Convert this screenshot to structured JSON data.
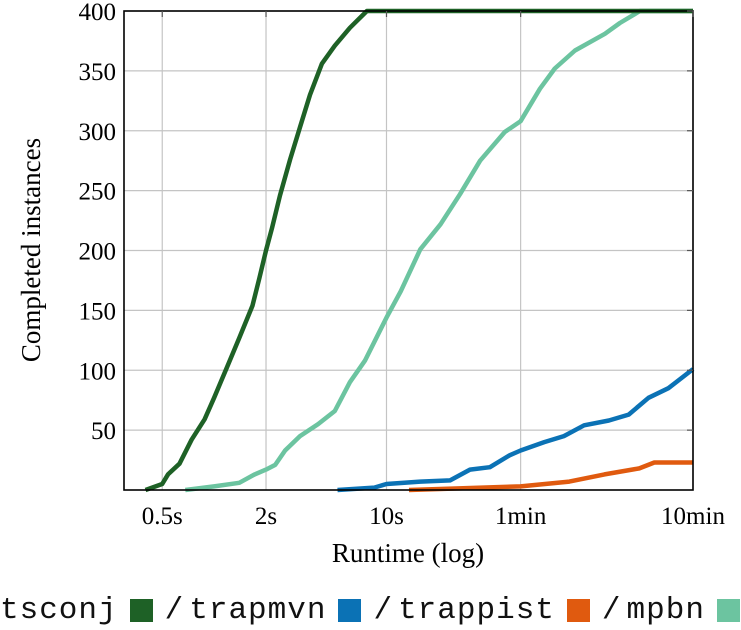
{
  "chart_data": {
    "type": "line",
    "title": "",
    "xlabel": "Runtime (log)",
    "ylabel": "Completed instances",
    "xscale": "log",
    "xlim_seconds": [
      0.3,
      600
    ],
    "ylim": [
      0,
      400
    ],
    "x_ticks": [
      {
        "label": "0.5s",
        "seconds": 0.5
      },
      {
        "label": "2s",
        "seconds": 2
      },
      {
        "label": "10s",
        "seconds": 10
      },
      {
        "label": "1min",
        "seconds": 60
      },
      {
        "label": "10min",
        "seconds": 600
      }
    ],
    "y_ticks": [
      50,
      100,
      150,
      200,
      250,
      300,
      350,
      400
    ],
    "grid": true,
    "legend_position": "bottom",
    "series": [
      {
        "name": "tsconj",
        "color": "#1e6126",
        "points": [
          [
            0.4,
            0
          ],
          [
            0.5,
            5
          ],
          [
            0.54,
            13
          ],
          [
            0.63,
            22
          ],
          [
            0.74,
            42
          ],
          [
            0.88,
            59
          ],
          [
            1.0,
            77
          ],
          [
            1.19,
            103
          ],
          [
            1.4,
            127
          ],
          [
            1.67,
            154
          ],
          [
            1.83,
            177
          ],
          [
            2.0,
            200
          ],
          [
            2.17,
            219
          ],
          [
            2.41,
            246
          ],
          [
            2.76,
            276
          ],
          [
            3.15,
            303
          ],
          [
            3.6,
            330
          ],
          [
            4.22,
            356
          ],
          [
            5.01,
            371
          ],
          [
            6.13,
            386
          ],
          [
            7.7,
            400
          ],
          [
            600,
            400
          ]
        ]
      },
      {
        "name": "trapmvn",
        "color": "#0b72b5",
        "points": [
          [
            5.2,
            0
          ],
          [
            8.5,
            2
          ],
          [
            10.0,
            5
          ],
          [
            15.7,
            7
          ],
          [
            23.4,
            8
          ],
          [
            30.5,
            17
          ],
          [
            39.8,
            19
          ],
          [
            51.8,
            29
          ],
          [
            60.0,
            33
          ],
          [
            82.3,
            40
          ],
          [
            107,
            45
          ],
          [
            140,
            54
          ],
          [
            195,
            58
          ],
          [
            254,
            63
          ],
          [
            331,
            77
          ],
          [
            432,
            85
          ],
          [
            600,
            101
          ]
        ]
      },
      {
        "name": "trappist",
        "color": "#e05a0f",
        "points": [
          [
            13.5,
            0
          ],
          [
            60.0,
            3
          ],
          [
            115,
            7
          ],
          [
            184,
            13
          ],
          [
            293,
            18
          ],
          [
            358,
            23
          ],
          [
            600,
            23
          ]
        ]
      },
      {
        "name": "mpbn",
        "color": "#6cc4a0",
        "points": [
          [
            0.68,
            0
          ],
          [
            1.0,
            3
          ],
          [
            1.4,
            6
          ],
          [
            1.72,
            13
          ],
          [
            2.0,
            17
          ],
          [
            2.26,
            21
          ],
          [
            2.58,
            33
          ],
          [
            3.15,
            45
          ],
          [
            4.01,
            55
          ],
          [
            5.01,
            66
          ],
          [
            6.13,
            90
          ],
          [
            7.49,
            108
          ],
          [
            10.0,
            144
          ],
          [
            12.1,
            166
          ],
          [
            15.7,
            201
          ],
          [
            20.6,
            222
          ],
          [
            26.7,
            247
          ],
          [
            34.9,
            275
          ],
          [
            48.6,
            299
          ],
          [
            60.0,
            308
          ],
          [
            77.6,
            335
          ],
          [
            94.7,
            352
          ],
          [
            124,
            367
          ],
          [
            185,
            381
          ],
          [
            226,
            390
          ],
          [
            295,
            400
          ],
          [
            600,
            400
          ]
        ]
      }
    ]
  },
  "legend": {
    "items": [
      {
        "label": "tsconj",
        "color": "#1e6126"
      },
      {
        "label": "trapmvn",
        "color": "#0b72b5"
      },
      {
        "label": "trappist",
        "color": "#e05a0f"
      },
      {
        "label": "mpbn",
        "color": "#6cc4a0"
      }
    ],
    "separator": "/"
  }
}
